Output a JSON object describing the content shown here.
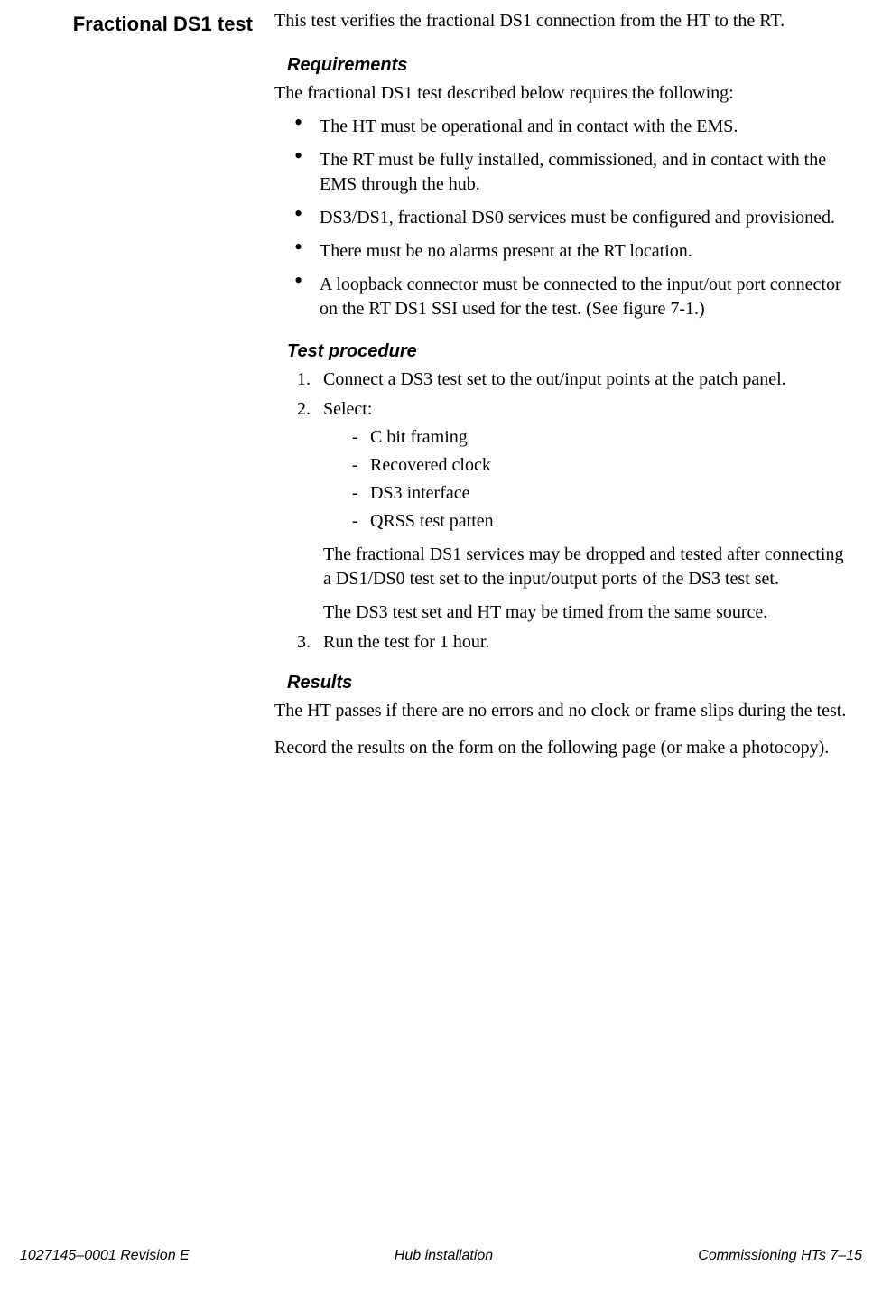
{
  "side_heading": "Fractional DS1 test",
  "intro": "This test verifies the fractional DS1 connection from the HT to the RT.",
  "requirements": {
    "heading": "Requirements",
    "intro": "The fractional DS1 test described below requires the following:",
    "items": [
      "The HT must be operational and in contact with the EMS.",
      "The RT must be fully installed, commissioned, and in contact with the EMS through the hub.",
      "DS3/DS1, fractional DS0 services must be configured and provisioned.",
      "There must be no alarms present at the RT location.",
      "A loopback connector must be connected to the input/out port connector on the RT DS1 SSI used for the test. (See figure 7-1.)"
    ]
  },
  "procedure": {
    "heading": "Test procedure",
    "steps": {
      "s1": {
        "num": "1.",
        "text": "Connect a DS3 test set to the out/input points at the patch panel."
      },
      "s2": {
        "num": "2.",
        "text": "Select:",
        "subitems": [
          "C bit framing",
          "Recovered clock",
          "DS3 interface",
          "QRSS test patten"
        ],
        "note1": "The fractional DS1 services may be dropped and tested after connecting a DS1/DS0 test set to the input/output ports of the DS3 test set.",
        "note2": "The DS3 test set and HT may be timed from the same source."
      },
      "s3": {
        "num": "3.",
        "text": "Run the test for 1 hour."
      }
    }
  },
  "results": {
    "heading": "Results",
    "p1": "The HT passes if there are no errors and no clock or frame slips during the test.",
    "p2": "Record the results on the form on the following page (or make a photocopy)."
  },
  "footer": {
    "left": "1027145–0001  Revision E",
    "center": "Hub installation",
    "right": "Commissioning HTs   7–15"
  }
}
